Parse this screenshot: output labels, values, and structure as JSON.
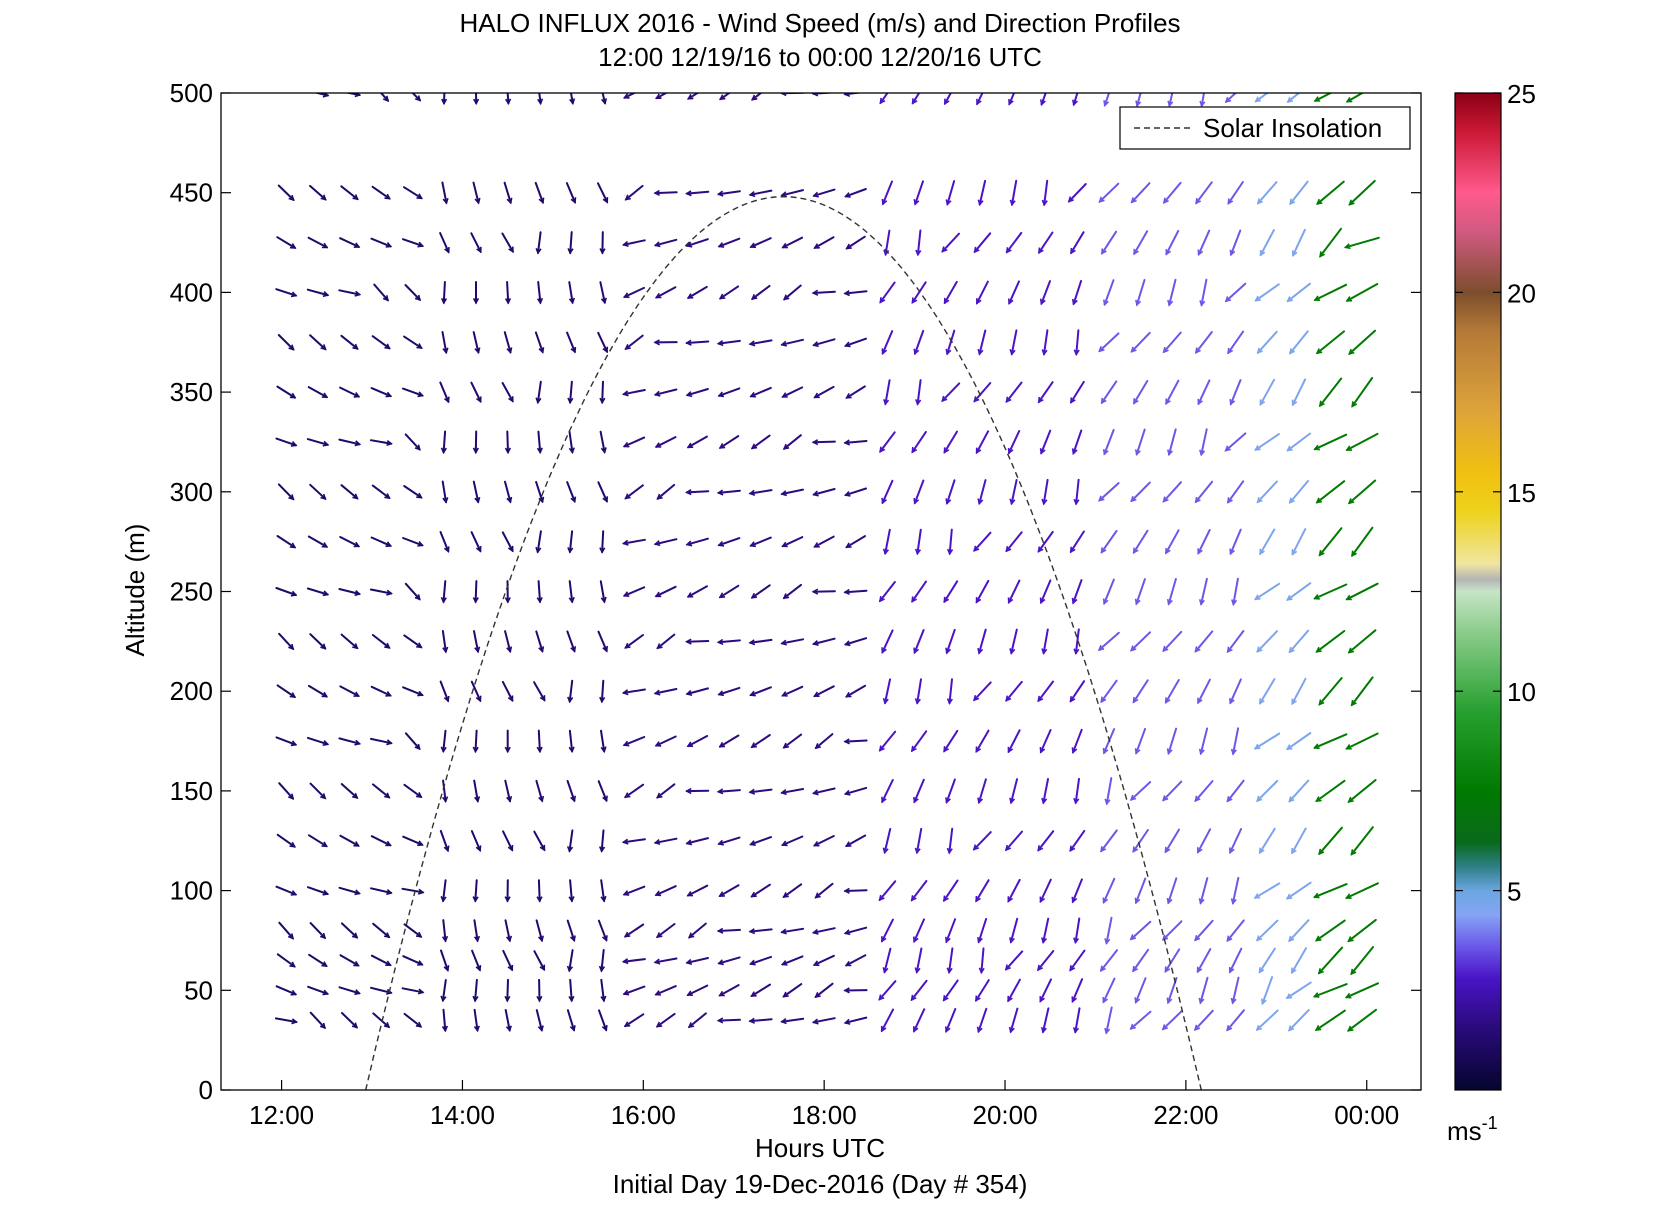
{
  "chart_data": {
    "type": "quiver",
    "title": "HALO INFLUX 2016 - Wind Speed (m/s) and Direction Profiles",
    "subtitle": "12:00 12/19/16 to 00:00 12/20/16  UTC",
    "xlabel": "Hours UTC",
    "ylabel": "Altitude (m)",
    "footer": "Initial Day 19-Dec-2016 (Day # 354)",
    "xlim_hours": [
      11.33,
      24.6
    ],
    "ylim": [
      0,
      500
    ],
    "x_ticks": [
      {
        "value": 12,
        "label": "12:00"
      },
      {
        "value": 14,
        "label": "14:00"
      },
      {
        "value": 16,
        "label": "16:00"
      },
      {
        "value": 18,
        "label": "18:00"
      },
      {
        "value": 20,
        "label": "20:00"
      },
      {
        "value": 22,
        "label": "22:00"
      },
      {
        "value": 24,
        "label": "00:00"
      }
    ],
    "y_ticks": [
      0,
      50,
      100,
      150,
      200,
      250,
      300,
      350,
      400,
      450,
      500
    ],
    "colorbar": {
      "range": [
        0,
        25
      ],
      "ticks": [
        5,
        10,
        15,
        20,
        25
      ],
      "unit_label": "ms",
      "unit_exponent": "-1",
      "stops": [
        {
          "v": 0,
          "c": "#05052e"
        },
        {
          "v": 1.5,
          "c": "#280a78"
        },
        {
          "v": 2.8,
          "c": "#4a14c6"
        },
        {
          "v": 3.6,
          "c": "#6a58e8"
        },
        {
          "v": 4.4,
          "c": "#86a4f4"
        },
        {
          "v": 5.0,
          "c": "#6aa6e0"
        },
        {
          "v": 5.6,
          "c": "#2f7f86"
        },
        {
          "v": 6.2,
          "c": "#0a6a1c"
        },
        {
          "v": 7.5,
          "c": "#007a00"
        },
        {
          "v": 9.5,
          "c": "#28a030"
        },
        {
          "v": 11.5,
          "c": "#8ccd8c"
        },
        {
          "v": 12.5,
          "c": "#c6e4c6"
        },
        {
          "v": 12.8,
          "c": "#b4b4b4"
        },
        {
          "v": 13.2,
          "c": "#f0e6a0"
        },
        {
          "v": 14.5,
          "c": "#eed21c"
        },
        {
          "v": 15.5,
          "c": "#f0c010"
        },
        {
          "v": 17.0,
          "c": "#dea43a"
        },
        {
          "v": 19.0,
          "c": "#b67a38"
        },
        {
          "v": 20.0,
          "c": "#7c4e2c"
        },
        {
          "v": 21.5,
          "c": "#d05a80"
        },
        {
          "v": 22.5,
          "c": "#ff5a8c"
        },
        {
          "v": 24.0,
          "c": "#cc1a38"
        },
        {
          "v": 25.0,
          "c": "#8c0014"
        }
      ]
    },
    "legend": {
      "entries": [
        "Solar Insolation"
      ],
      "position": "top-right",
      "line_style": "dashed"
    },
    "solar_insolation": {
      "start_hour": 12.93,
      "peak_hour": 17.55,
      "end_hour": 22.17,
      "peak_altitude": 448
    },
    "arrow_times": [
      12.05,
      12.4,
      12.75,
      13.1,
      13.45,
      13.8,
      14.15,
      14.5,
      14.85,
      15.2,
      15.55,
      15.9,
      16.25,
      16.6,
      16.95,
      17.3,
      17.65,
      18.0,
      18.35,
      18.7,
      19.05,
      19.4,
      19.75,
      20.1,
      20.45,
      20.8,
      21.15,
      21.5,
      21.85,
      22.2,
      22.55,
      22.9,
      23.25,
      23.6,
      23.95
    ],
    "arrow_altitudes": [
      35,
      50,
      65,
      80,
      100,
      125,
      150,
      175,
      200,
      225,
      250,
      275,
      300,
      325,
      350,
      375,
      400,
      425,
      450,
      500
    ],
    "wind_regimes": [
      {
        "from_hour": 12.0,
        "to_hour": 13.6,
        "speed_ms": 1.2,
        "direction_deg": 120,
        "note_alt_above": 0
      },
      {
        "from_hour": 13.6,
        "to_hour": 15.6,
        "speed_ms": 1.3,
        "direction_deg": 170
      },
      {
        "from_hour": 15.6,
        "to_hour": 18.6,
        "speed_ms": 1.6,
        "direction_deg": 250
      },
      {
        "from_hour": 18.6,
        "to_hour": 21.0,
        "speed_ms": 2.8,
        "direction_deg": 205
      },
      {
        "from_hour": 21.0,
        "to_hour": 22.6,
        "speed_ms": 3.6,
        "direction_deg": 210
      },
      {
        "from_hour": 22.6,
        "to_hour": 23.5,
        "speed_ms": 4.6,
        "direction_deg": 220
      },
      {
        "from_hour": 23.5,
        "to_hour": 24.0,
        "speed_ms": 7.5,
        "direction_deg": 235
      }
    ]
  }
}
